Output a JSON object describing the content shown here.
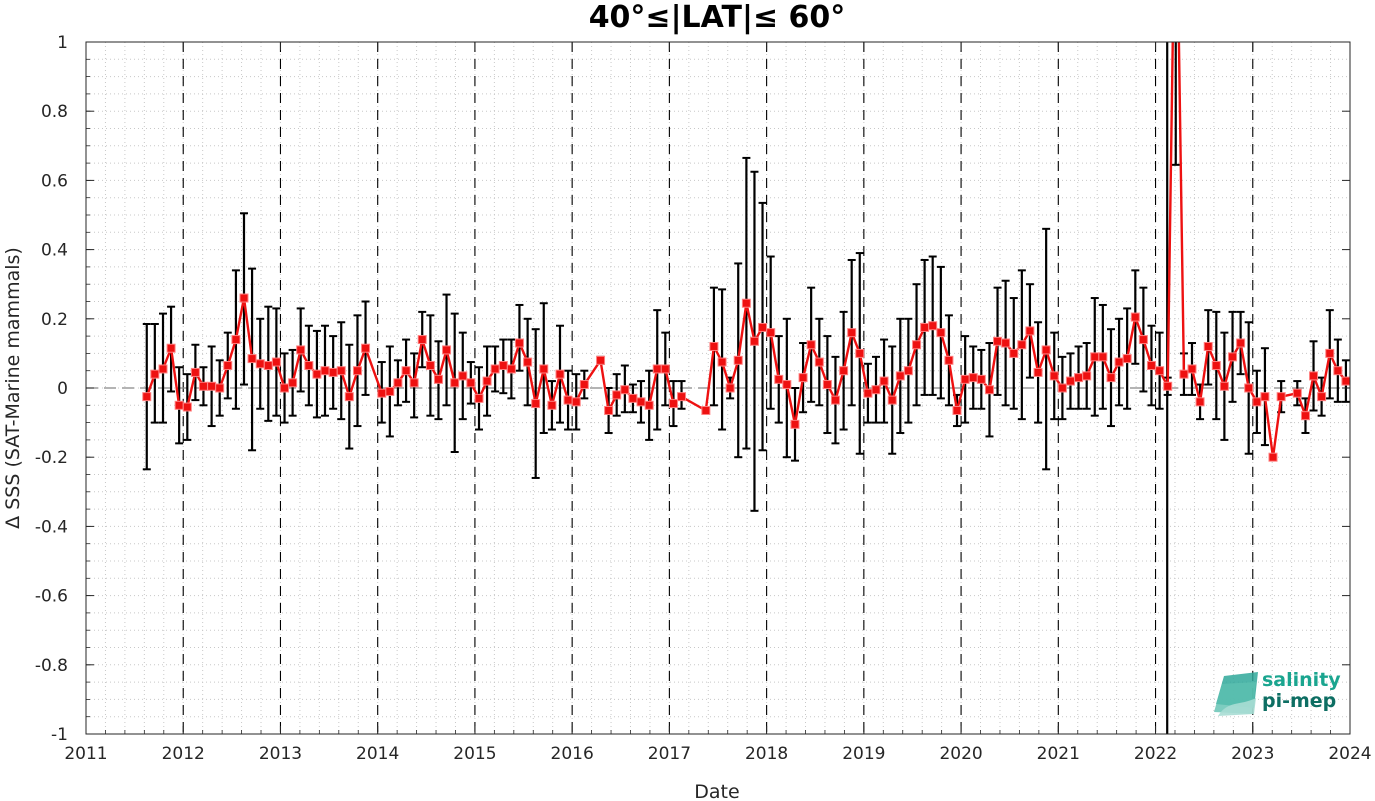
{
  "chart_data": {
    "type": "line",
    "title": "40°≤|LAT|≤ 60°",
    "xlabel": "Date",
    "ylabel": "Δ SSS (SAT-Marine mammals)",
    "xlim": [
      2011,
      2024
    ],
    "ylim": [
      -1,
      1
    ],
    "x_ticks": [
      "2011",
      "2012",
      "2013",
      "2014",
      "2015",
      "2016",
      "2017",
      "2018",
      "2019",
      "2020",
      "2021",
      "2022",
      "2023",
      "2024"
    ],
    "y_ticks": [
      "1",
      "0.8",
      "0.6",
      "0.4",
      "0.2",
      "0",
      "-0.2",
      "-0.4",
      "-0.6",
      "-0.8",
      "-1"
    ],
    "grid": "minor dotted",
    "reference_line_y": 0,
    "year_separators": "dashed vertical at each year start",
    "vertical_marker_x": 2022.12,
    "series": [
      {
        "color": "#ee1111",
        "marker": "square",
        "errorbar_color": "#000000",
        "points": [
          {
            "x": 2011.625,
            "y": -0.025,
            "lo": -0.235,
            "hi": 0.185
          },
          {
            "x": 2011.708,
            "y": 0.04,
            "lo": -0.1,
            "hi": 0.185
          },
          {
            "x": 2011.792,
            "y": 0.055,
            "lo": -0.1,
            "hi": 0.215
          },
          {
            "x": 2011.875,
            "y": 0.115,
            "lo": -0.01,
            "hi": 0.235
          },
          {
            "x": 2011.958,
            "y": -0.05,
            "lo": -0.16,
            "hi": 0.06
          },
          {
            "x": 2012.042,
            "y": -0.055,
            "lo": -0.15,
            "hi": 0.04
          },
          {
            "x": 2012.125,
            "y": 0.045,
            "lo": -0.035,
            "hi": 0.125
          },
          {
            "x": 2012.208,
            "y": 0.005,
            "lo": -0.05,
            "hi": 0.06
          },
          {
            "x": 2012.292,
            "y": 0.005,
            "lo": -0.11,
            "hi": 0.12
          },
          {
            "x": 2012.375,
            "y": 0.0,
            "lo": -0.08,
            "hi": 0.08
          },
          {
            "x": 2012.458,
            "y": 0.065,
            "lo": -0.03,
            "hi": 0.16
          },
          {
            "x": 2012.542,
            "y": 0.14,
            "lo": -0.06,
            "hi": 0.34
          },
          {
            "x": 2012.625,
            "y": 0.26,
            "lo": 0.01,
            "hi": 0.505
          },
          {
            "x": 2012.708,
            "y": 0.085,
            "lo": -0.18,
            "hi": 0.345
          },
          {
            "x": 2012.792,
            "y": 0.07,
            "lo": -0.06,
            "hi": 0.2
          },
          {
            "x": 2012.875,
            "y": 0.065,
            "lo": -0.095,
            "hi": 0.235
          },
          {
            "x": 2012.958,
            "y": 0.075,
            "lo": -0.08,
            "hi": 0.23
          },
          {
            "x": 2013.042,
            "y": 0.0,
            "lo": -0.1,
            "hi": 0.1
          },
          {
            "x": 2013.125,
            "y": 0.015,
            "lo": -0.08,
            "hi": 0.11
          },
          {
            "x": 2013.208,
            "y": 0.11,
            "lo": -0.01,
            "hi": 0.23
          },
          {
            "x": 2013.292,
            "y": 0.065,
            "lo": -0.05,
            "hi": 0.18
          },
          {
            "x": 2013.375,
            "y": 0.04,
            "lo": -0.085,
            "hi": 0.165
          },
          {
            "x": 2013.458,
            "y": 0.05,
            "lo": -0.08,
            "hi": 0.18
          },
          {
            "x": 2013.542,
            "y": 0.045,
            "lo": -0.06,
            "hi": 0.15
          },
          {
            "x": 2013.625,
            "y": 0.05,
            "lo": -0.09,
            "hi": 0.19
          },
          {
            "x": 2013.708,
            "y": -0.025,
            "lo": -0.175,
            "hi": 0.125
          },
          {
            "x": 2013.792,
            "y": 0.05,
            "lo": -0.11,
            "hi": 0.21
          },
          {
            "x": 2013.875,
            "y": 0.115,
            "lo": -0.02,
            "hi": 0.25
          },
          {
            "x": 2014.042,
            "y": -0.015,
            "lo": -0.1,
            "hi": 0.075
          },
          {
            "x": 2014.125,
            "y": -0.01,
            "lo": -0.14,
            "hi": 0.12
          },
          {
            "x": 2014.208,
            "y": 0.015,
            "lo": -0.05,
            "hi": 0.08
          },
          {
            "x": 2014.292,
            "y": 0.05,
            "lo": -0.04,
            "hi": 0.14
          },
          {
            "x": 2014.375,
            "y": 0.015,
            "lo": -0.085,
            "hi": 0.1
          },
          {
            "x": 2014.458,
            "y": 0.14,
            "lo": 0.06,
            "hi": 0.22
          },
          {
            "x": 2014.542,
            "y": 0.065,
            "lo": -0.08,
            "hi": 0.21
          },
          {
            "x": 2014.625,
            "y": 0.025,
            "lo": -0.09,
            "hi": 0.135
          },
          {
            "x": 2014.708,
            "y": 0.11,
            "lo": -0.05,
            "hi": 0.27
          },
          {
            "x": 2014.792,
            "y": 0.015,
            "lo": -0.185,
            "hi": 0.215
          },
          {
            "x": 2014.875,
            "y": 0.035,
            "lo": -0.09,
            "hi": 0.16
          },
          {
            "x": 2014.958,
            "y": 0.015,
            "lo": -0.045,
            "hi": 0.075
          },
          {
            "x": 2015.042,
            "y": -0.03,
            "lo": -0.12,
            "hi": 0.06
          },
          {
            "x": 2015.125,
            "y": 0.02,
            "lo": -0.08,
            "hi": 0.12
          },
          {
            "x": 2015.208,
            "y": 0.055,
            "lo": -0.01,
            "hi": 0.12
          },
          {
            "x": 2015.292,
            "y": 0.065,
            "lo": -0.015,
            "hi": 0.14
          },
          {
            "x": 2015.375,
            "y": 0.055,
            "lo": -0.03,
            "hi": 0.14
          },
          {
            "x": 2015.458,
            "y": 0.13,
            "lo": 0.05,
            "hi": 0.24
          },
          {
            "x": 2015.542,
            "y": 0.075,
            "lo": -0.05,
            "hi": 0.2
          },
          {
            "x": 2015.625,
            "y": -0.045,
            "lo": -0.26,
            "hi": 0.17
          },
          {
            "x": 2015.708,
            "y": 0.055,
            "lo": -0.13,
            "hi": 0.245
          },
          {
            "x": 2015.792,
            "y": -0.05,
            "lo": -0.12,
            "hi": 0.02
          },
          {
            "x": 2015.875,
            "y": 0.04,
            "lo": -0.1,
            "hi": 0.18
          },
          {
            "x": 2015.958,
            "y": -0.035,
            "lo": -0.12,
            "hi": 0.05
          },
          {
            "x": 2016.042,
            "y": -0.04,
            "lo": -0.12,
            "hi": 0.04
          },
          {
            "x": 2016.125,
            "y": 0.01,
            "lo": -0.03,
            "hi": 0.05
          },
          {
            "x": 2016.292,
            "y": 0.08,
            "lo": 0.07,
            "hi": 0.09
          },
          {
            "x": 2016.375,
            "y": -0.065,
            "lo": -0.13,
            "hi": 0.0
          },
          {
            "x": 2016.458,
            "y": -0.02,
            "lo": -0.08,
            "hi": 0.04
          },
          {
            "x": 2016.542,
            "y": -0.005,
            "lo": -0.07,
            "hi": 0.065
          },
          {
            "x": 2016.625,
            "y": -0.03,
            "lo": -0.07,
            "hi": 0.01
          },
          {
            "x": 2016.708,
            "y": -0.04,
            "lo": -0.1,
            "hi": 0.02
          },
          {
            "x": 2016.792,
            "y": -0.05,
            "lo": -0.15,
            "hi": 0.05
          },
          {
            "x": 2016.875,
            "y": 0.055,
            "lo": -0.12,
            "hi": 0.225
          },
          {
            "x": 2016.958,
            "y": 0.055,
            "lo": -0.05,
            "hi": 0.16
          },
          {
            "x": 2017.042,
            "y": -0.045,
            "lo": -0.11,
            "hi": 0.02
          },
          {
            "x": 2017.125,
            "y": -0.025,
            "lo": -0.06,
            "hi": 0.02
          },
          {
            "x": 2017.375,
            "y": -0.065,
            "lo": -0.065,
            "hi": -0.06
          },
          {
            "x": 2017.458,
            "y": 0.12,
            "lo": -0.05,
            "hi": 0.29
          },
          {
            "x": 2017.542,
            "y": 0.075,
            "lo": -0.12,
            "hi": 0.285
          },
          {
            "x": 2017.625,
            "y": 0.0,
            "lo": -0.03,
            "hi": 0.03
          },
          {
            "x": 2017.708,
            "y": 0.08,
            "lo": -0.2,
            "hi": 0.36
          },
          {
            "x": 2017.792,
            "y": 0.245,
            "lo": -0.175,
            "hi": 0.665
          },
          {
            "x": 2017.875,
            "y": 0.135,
            "lo": -0.355,
            "hi": 0.625
          },
          {
            "x": 2017.958,
            "y": 0.175,
            "lo": -0.18,
            "hi": 0.535
          },
          {
            "x": 2018.042,
            "y": 0.16,
            "lo": -0.06,
            "hi": 0.38
          },
          {
            "x": 2018.125,
            "y": 0.025,
            "lo": -0.1,
            "hi": 0.15
          },
          {
            "x": 2018.208,
            "y": 0.01,
            "lo": -0.2,
            "hi": 0.2
          },
          {
            "x": 2018.292,
            "y": -0.105,
            "lo": -0.21,
            "hi": 0.0
          },
          {
            "x": 2018.375,
            "y": 0.03,
            "lo": -0.07,
            "hi": 0.13
          },
          {
            "x": 2018.458,
            "y": 0.125,
            "lo": -0.04,
            "hi": 0.29
          },
          {
            "x": 2018.542,
            "y": 0.075,
            "lo": -0.05,
            "hi": 0.2
          },
          {
            "x": 2018.625,
            "y": 0.01,
            "lo": -0.13,
            "hi": 0.15
          },
          {
            "x": 2018.708,
            "y": -0.035,
            "lo": -0.16,
            "hi": 0.09
          },
          {
            "x": 2018.792,
            "y": 0.05,
            "lo": -0.12,
            "hi": 0.22
          },
          {
            "x": 2018.875,
            "y": 0.16,
            "lo": -0.05,
            "hi": 0.37
          },
          {
            "x": 2018.958,
            "y": 0.1,
            "lo": -0.19,
            "hi": 0.39
          },
          {
            "x": 2019.042,
            "y": -0.015,
            "lo": -0.1,
            "hi": 0.07
          },
          {
            "x": 2019.125,
            "y": -0.005,
            "lo": -0.1,
            "hi": 0.09
          },
          {
            "x": 2019.208,
            "y": 0.02,
            "lo": -0.1,
            "hi": 0.14
          },
          {
            "x": 2019.292,
            "y": -0.035,
            "lo": -0.19,
            "hi": 0.12
          },
          {
            "x": 2019.375,
            "y": 0.035,
            "lo": -0.13,
            "hi": 0.2
          },
          {
            "x": 2019.458,
            "y": 0.05,
            "lo": -0.1,
            "hi": 0.2
          },
          {
            "x": 2019.542,
            "y": 0.125,
            "lo": -0.05,
            "hi": 0.3
          },
          {
            "x": 2019.625,
            "y": 0.175,
            "lo": -0.02,
            "hi": 0.37
          },
          {
            "x": 2019.708,
            "y": 0.18,
            "lo": -0.02,
            "hi": 0.38
          },
          {
            "x": 2019.792,
            "y": 0.16,
            "lo": -0.03,
            "hi": 0.35
          },
          {
            "x": 2019.875,
            "y": 0.08,
            "lo": -0.05,
            "hi": 0.21
          },
          {
            "x": 2019.958,
            "y": -0.065,
            "lo": -0.11,
            "hi": -0.02
          },
          {
            "x": 2020.042,
            "y": 0.025,
            "lo": -0.1,
            "hi": 0.15
          },
          {
            "x": 2020.125,
            "y": 0.03,
            "lo": -0.06,
            "hi": 0.12
          },
          {
            "x": 2020.208,
            "y": 0.025,
            "lo": -0.06,
            "hi": 0.11
          },
          {
            "x": 2020.292,
            "y": -0.005,
            "lo": -0.14,
            "hi": 0.13
          },
          {
            "x": 2020.375,
            "y": 0.135,
            "lo": -0.02,
            "hi": 0.29
          },
          {
            "x": 2020.458,
            "y": 0.13,
            "lo": -0.05,
            "hi": 0.31
          },
          {
            "x": 2020.542,
            "y": 0.1,
            "lo": -0.06,
            "hi": 0.26
          },
          {
            "x": 2020.625,
            "y": 0.125,
            "lo": -0.09,
            "hi": 0.34
          },
          {
            "x": 2020.708,
            "y": 0.165,
            "lo": 0.03,
            "hi": 0.3
          },
          {
            "x": 2020.792,
            "y": 0.045,
            "lo": -0.1,
            "hi": 0.19
          },
          {
            "x": 2020.875,
            "y": 0.11,
            "lo": -0.235,
            "hi": 0.46
          },
          {
            "x": 2020.958,
            "y": 0.035,
            "lo": -0.09,
            "hi": 0.16
          },
          {
            "x": 2021.042,
            "y": 0.0,
            "lo": -0.09,
            "hi": 0.09
          },
          {
            "x": 2021.125,
            "y": 0.02,
            "lo": -0.06,
            "hi": 0.1
          },
          {
            "x": 2021.208,
            "y": 0.03,
            "lo": -0.06,
            "hi": 0.12
          },
          {
            "x": 2021.292,
            "y": 0.035,
            "lo": -0.06,
            "hi": 0.13
          },
          {
            "x": 2021.375,
            "y": 0.09,
            "lo": -0.08,
            "hi": 0.26
          },
          {
            "x": 2021.458,
            "y": 0.09,
            "lo": -0.06,
            "hi": 0.24
          },
          {
            "x": 2021.542,
            "y": 0.03,
            "lo": -0.11,
            "hi": 0.17
          },
          {
            "x": 2021.625,
            "y": 0.075,
            "lo": -0.05,
            "hi": 0.2
          },
          {
            "x": 2021.708,
            "y": 0.085,
            "lo": -0.06,
            "hi": 0.23
          },
          {
            "x": 2021.792,
            "y": 0.205,
            "lo": 0.07,
            "hi": 0.34
          },
          {
            "x": 2021.875,
            "y": 0.14,
            "lo": -0.01,
            "hi": 0.29
          },
          {
            "x": 2021.958,
            "y": 0.065,
            "lo": -0.05,
            "hi": 0.18
          },
          {
            "x": 2022.042,
            "y": 0.05,
            "lo": -0.06,
            "hi": 0.16
          },
          {
            "x": 2022.125,
            "y": 0.005,
            "lo": -0.02,
            "hi": 0.03
          },
          {
            "x": 2022.208,
            "y": 1.6,
            "lo": 0.645,
            "hi": 2.0
          },
          {
            "x": 2022.292,
            "y": 0.04,
            "lo": -0.02,
            "hi": 0.1
          },
          {
            "x": 2022.375,
            "y": 0.055,
            "lo": -0.02,
            "hi": 0.13
          },
          {
            "x": 2022.458,
            "y": -0.04,
            "lo": -0.09,
            "hi": 0.01
          },
          {
            "x": 2022.542,
            "y": 0.12,
            "lo": 0.01,
            "hi": 0.225
          },
          {
            "x": 2022.625,
            "y": 0.065,
            "lo": -0.09,
            "hi": 0.22
          },
          {
            "x": 2022.708,
            "y": 0.005,
            "lo": -0.15,
            "hi": 0.16
          },
          {
            "x": 2022.792,
            "y": 0.09,
            "lo": -0.04,
            "hi": 0.22
          },
          {
            "x": 2022.875,
            "y": 0.13,
            "lo": 0.04,
            "hi": 0.22
          },
          {
            "x": 2022.958,
            "y": 0.0,
            "lo": -0.19,
            "hi": 0.19
          },
          {
            "x": 2023.042,
            "y": -0.04,
            "lo": -0.13,
            "hi": 0.05
          },
          {
            "x": 2023.125,
            "y": -0.025,
            "lo": -0.165,
            "hi": 0.115
          },
          {
            "x": 2023.208,
            "y": -0.2,
            "lo": -0.2,
            "hi": -0.2
          },
          {
            "x": 2023.292,
            "y": -0.025,
            "lo": -0.07,
            "hi": 0.02
          },
          {
            "x": 2023.458,
            "y": -0.015,
            "lo": -0.05,
            "hi": 0.02
          },
          {
            "x": 2023.542,
            "y": -0.08,
            "lo": -0.13,
            "hi": -0.03
          },
          {
            "x": 2023.625,
            "y": 0.035,
            "lo": -0.065,
            "hi": 0.135
          },
          {
            "x": 2023.708,
            "y": -0.025,
            "lo": -0.08,
            "hi": 0.03
          },
          {
            "x": 2023.792,
            "y": 0.1,
            "lo": -0.03,
            "hi": 0.225
          },
          {
            "x": 2023.875,
            "y": 0.05,
            "lo": -0.04,
            "hi": 0.14
          },
          {
            "x": 2023.958,
            "y": 0.02,
            "lo": -0.04,
            "hi": 0.08
          }
        ]
      }
    ]
  },
  "logo": {
    "line1": "salinity",
    "line2": "pi-mep",
    "color1": "#1aa58f",
    "color2": "#0d6e63"
  }
}
